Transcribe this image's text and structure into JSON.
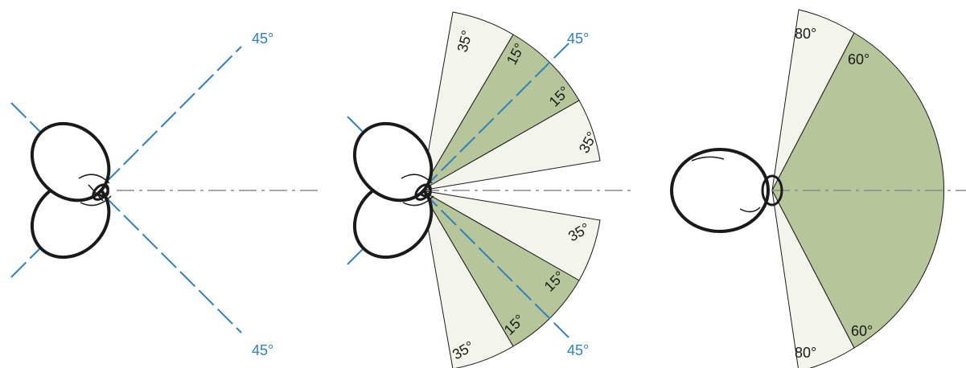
{
  "colors": {
    "guide_line": "#2f7fc1",
    "axis_line": "#8a8a8a",
    "sector_light": "#f3f4ec",
    "sector_dark": "#b6c59a",
    "outline": "#1a1a1a"
  },
  "panel1": {
    "label_top": "45°",
    "label_bottom": "45°"
  },
  "panel2": {
    "label_top": "45°",
    "label_bottom": "45°",
    "upper_outer": "35°",
    "upper_inner_a": "15°",
    "upper_inner_b": "15°",
    "upper_lower_light": "35°",
    "lower_upper_light": "35°",
    "lower_inner_a": "15°",
    "lower_inner_b": "15°",
    "lower_outer": "35°"
  },
  "panel3": {
    "top_outer": "80°",
    "top_inner": "60°",
    "bottom_inner": "60°",
    "bottom_outer": "80°"
  }
}
